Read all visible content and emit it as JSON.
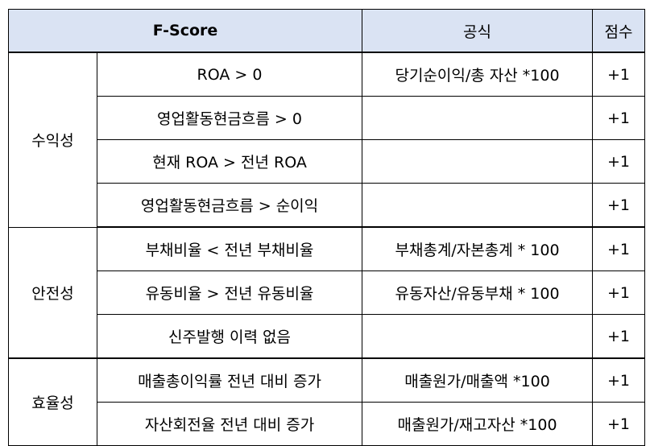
{
  "header": {
    "fscore": "F-Score",
    "formula": "공식",
    "score": "점수"
  },
  "groups": [
    {
      "category": "수익성",
      "rows": [
        {
          "criterion": "ROA > 0",
          "formula": "당기순이익/총 자산 *100",
          "score": "+1"
        },
        {
          "criterion": "영업활동현금흐름 > 0",
          "formula": "",
          "score": "+1"
        },
        {
          "criterion": "현재 ROA > 전년 ROA",
          "formula": "",
          "score": "+1"
        },
        {
          "criterion": "영업활동현금흐름 > 순이익",
          "formula": "",
          "score": "+1"
        }
      ]
    },
    {
      "category": "안전성",
      "rows": [
        {
          "criterion": "부채비율 < 전년 부채비율",
          "formula": "부채총계/자본총계 * 100",
          "score": "+1"
        },
        {
          "criterion": "유동비율 > 전년 유동비율",
          "formula": "유동자산/유동부채 * 100",
          "score": "+1"
        },
        {
          "criterion": "신주발행 이력 없음",
          "formula": "",
          "score": "+1"
        }
      ]
    },
    {
      "category": "효율성",
      "rows": [
        {
          "criterion": "매출총이익률 전년 대비 증가",
          "formula": "매출원가/매출액 *100",
          "score": "+1"
        },
        {
          "criterion": "자산회전율 전년 대비 증가",
          "formula": "매출원가/재고자산 *100",
          "score": "+1"
        }
      ]
    }
  ]
}
